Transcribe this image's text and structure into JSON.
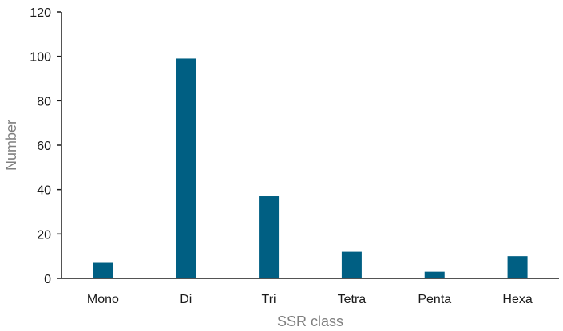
{
  "chart_data": {
    "type": "bar",
    "title": "",
    "xlabel": "SSR class",
    "ylabel": "Number",
    "categories": [
      "Mono",
      "Di",
      "Tri",
      "Tetra",
      "Penta",
      "Hexa"
    ],
    "series": [
      {
        "values": [
          7,
          99,
          37,
          12,
          3,
          10
        ]
      }
    ],
    "ylim": [
      0,
      120
    ],
    "yticks": [
      0,
      20,
      40,
      60,
      80,
      100,
      120
    ],
    "ytick_labels": [
      "0",
      "20",
      "40",
      "60",
      "80",
      "100",
      "120"
    ],
    "grid": false,
    "legend": "none",
    "bar_color": "#005f83",
    "axis_color": "#1a1a1a"
  }
}
